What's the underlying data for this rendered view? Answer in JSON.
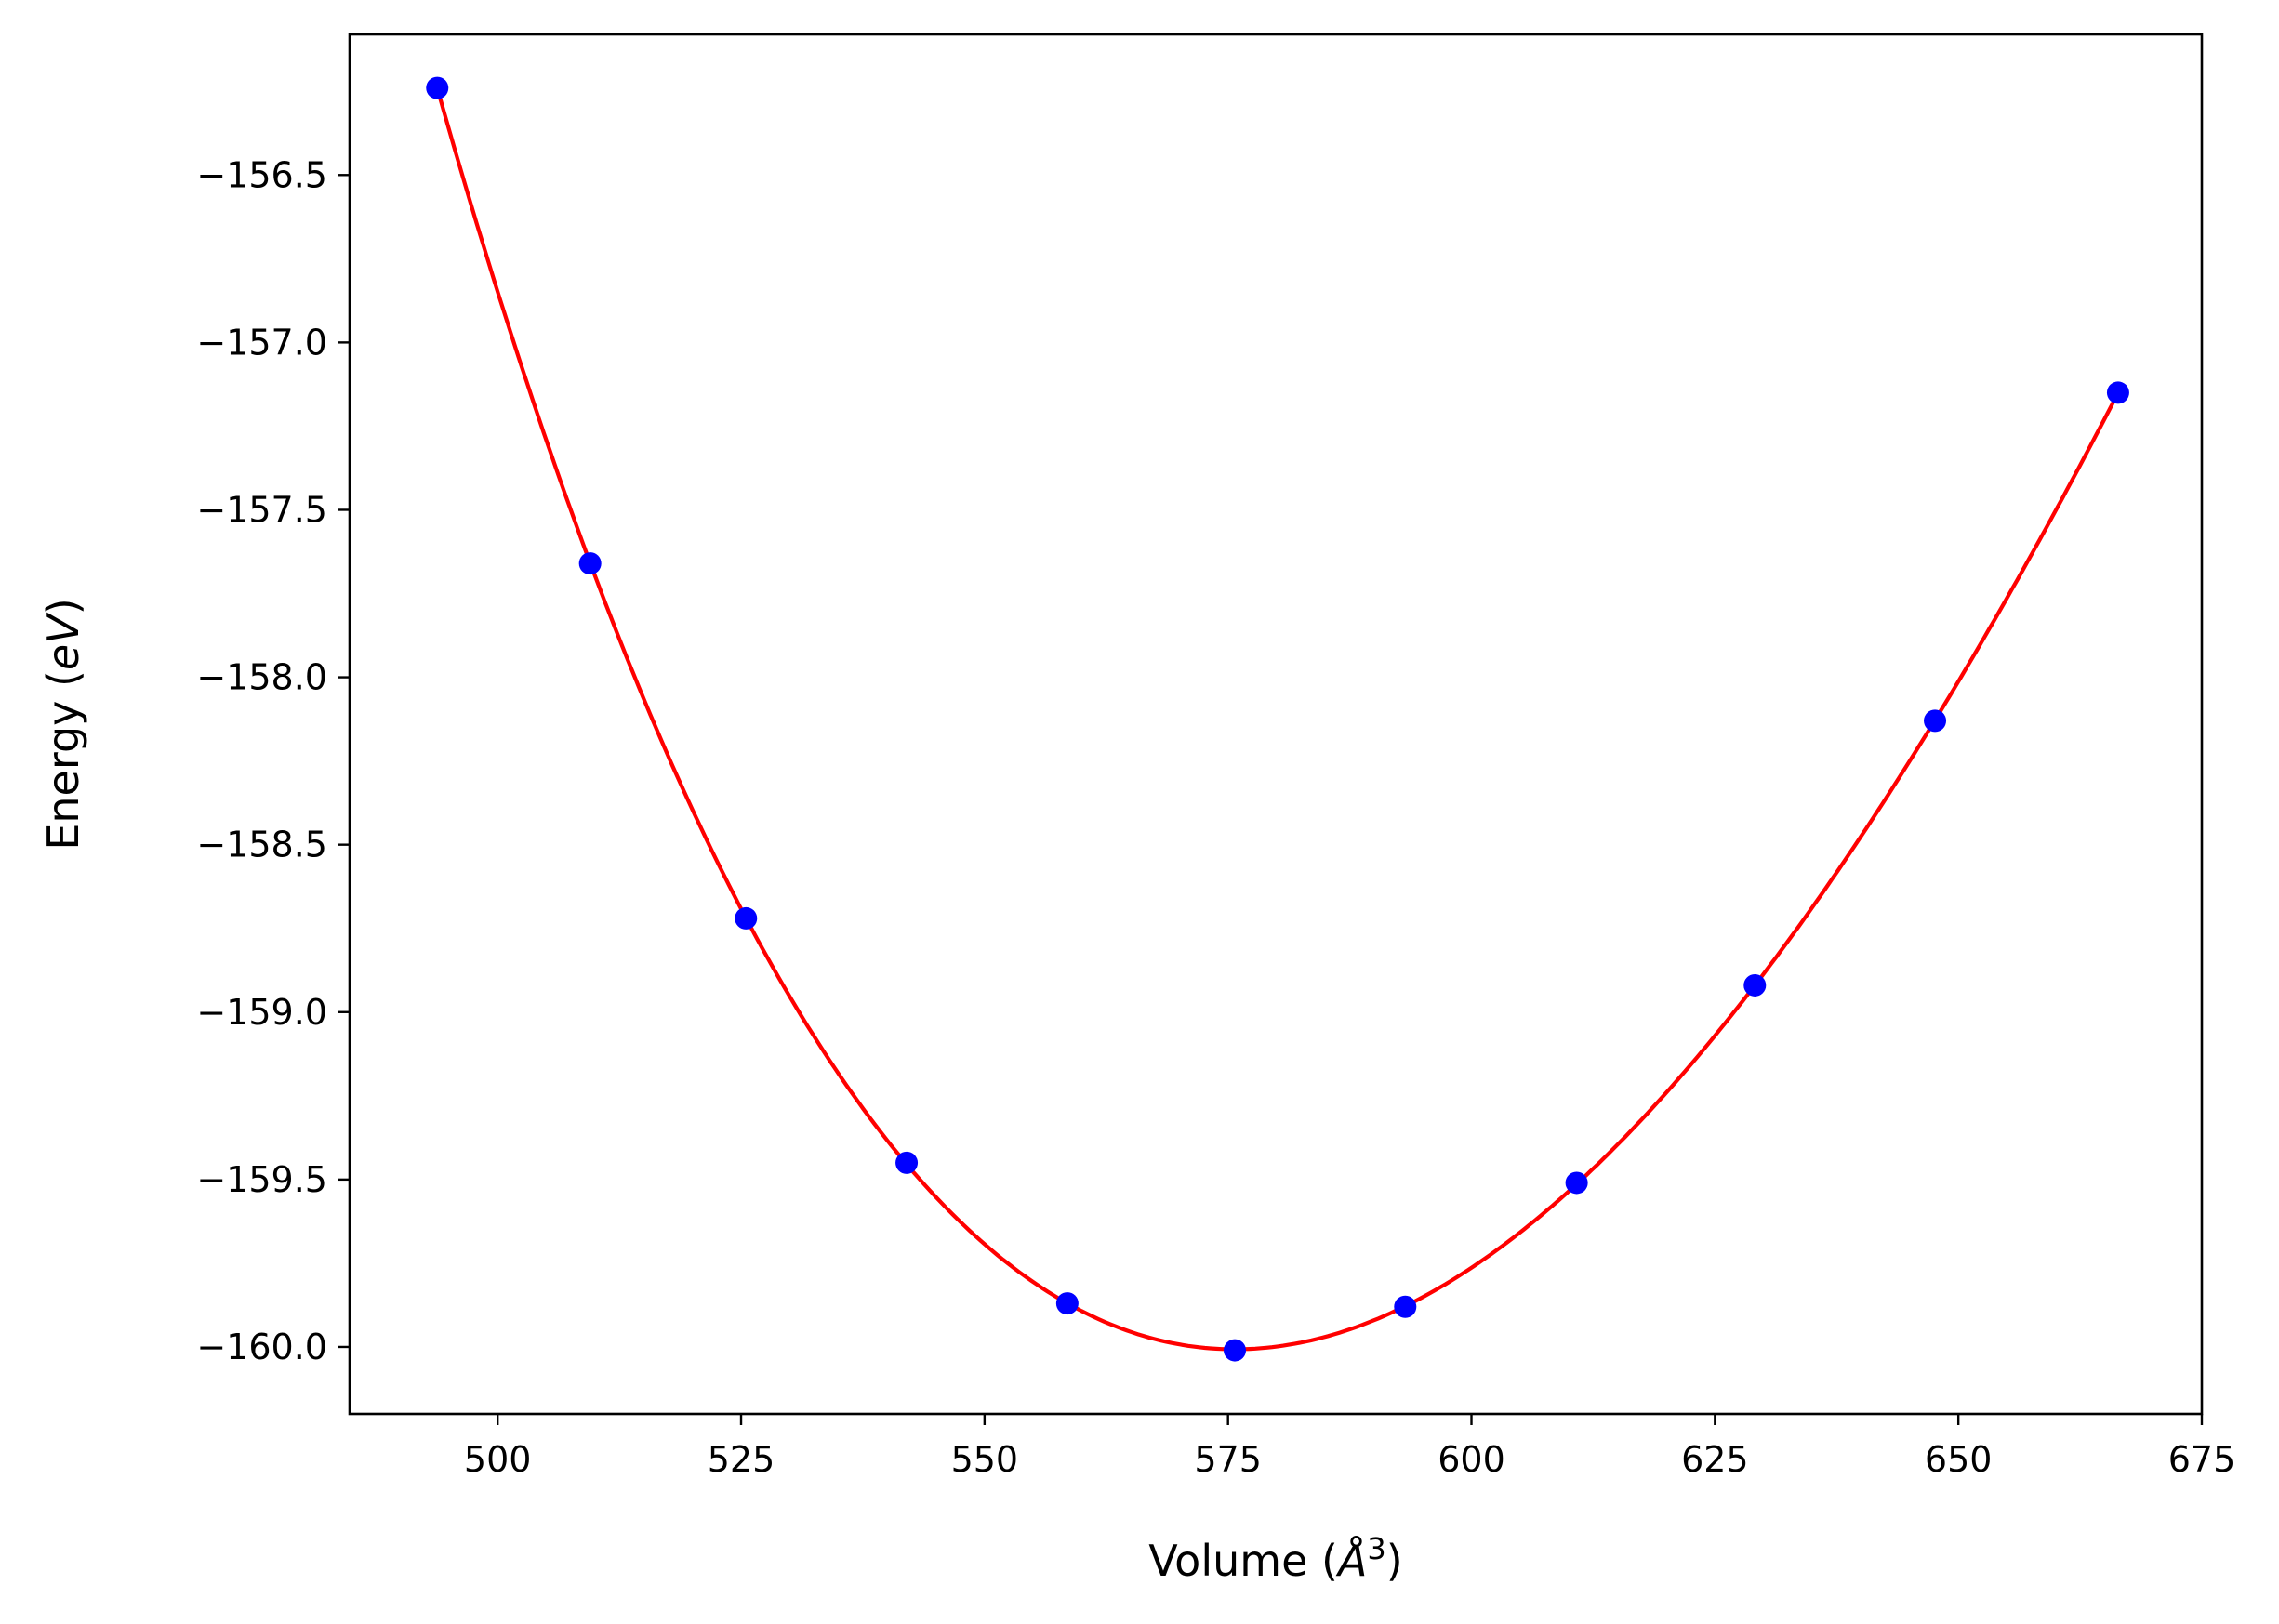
{
  "chart_data": {
    "type": "scatter",
    "title": "",
    "xlabel": "Volume (",
    "xlabel_unit": "Å",
    "xlabel_exp": "3",
    "xlabel_close": ")",
    "ylabel": "Energy (",
    "ylabel_unit": "eV",
    "ylabel_close": ")",
    "xlim": [
      484.8,
      675
    ],
    "ylim": [
      -160.2,
      -156.08
    ],
    "xticks": [
      500,
      525,
      550,
      575,
      600,
      625,
      650,
      675
    ],
    "xtick_labels": [
      "500",
      "525",
      "550",
      "575",
      "600",
      "625",
      "650",
      "675"
    ],
    "yticks": [
      -156.5,
      -157.0,
      -157.5,
      -158.0,
      -158.5,
      -159.0,
      -159.5,
      -160.0
    ],
    "ytick_labels": [
      "−156.5",
      "−157.0",
      "−157.5",
      "−158.0",
      "−158.5",
      "−159.0",
      "−159.5",
      "−160.0"
    ],
    "grid": false,
    "series": [
      {
        "type": "scatter",
        "color": "#0000ff",
        "x": [
          493.8,
          509.5,
          525.5,
          542.0,
          558.5,
          575.7,
          593.2,
          610.8,
          629.1,
          647.6,
          666.4
        ],
        "y": [
          -156.24,
          -157.66,
          -158.72,
          -159.45,
          -159.87,
          -160.01,
          -159.88,
          -159.51,
          -158.92,
          -158.13,
          -157.15
        ]
      },
      {
        "type": "line",
        "color": "#ff0000",
        "fit": "quartic"
      }
    ]
  }
}
